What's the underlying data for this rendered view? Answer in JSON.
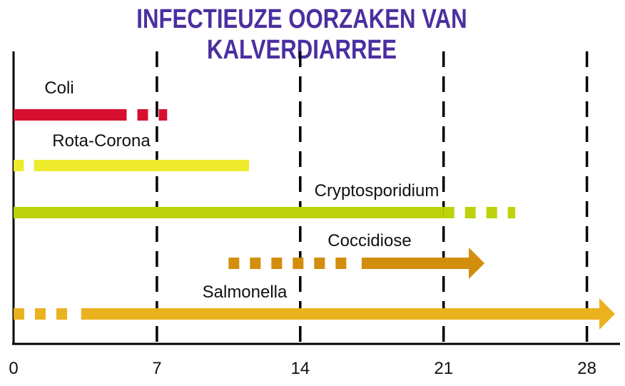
{
  "chart_data": {
    "type": "timeline",
    "title": "INFECTIEUZE OORZAKEN VAN KALVERDIARREE",
    "x_ticks": [
      0,
      7,
      14,
      21,
      28
    ],
    "xlim": [
      0,
      30
    ],
    "grid": "dashed vertical lines at 7, 14, 21, 28",
    "series": [
      {
        "name": "Coli",
        "color": "#d8102f",
        "solid": [
          [
            0,
            5
          ]
        ],
        "dashed": [
          [
            5,
            7.5
          ]
        ],
        "arrow": false
      },
      {
        "name": "Rota-Corona",
        "color": "#eeeb2c",
        "solid": [
          [
            1,
            11.5
          ]
        ],
        "dashed": [
          [
            0,
            0.5
          ]
        ],
        "arrow": false
      },
      {
        "name": "Cryptosporidium",
        "color": "#bcd30b",
        "solid": [
          [
            0,
            21
          ]
        ],
        "dashed": [
          [
            21,
            24.5
          ]
        ],
        "arrow": false
      },
      {
        "name": "Coccidiose",
        "color": "#d38e0d",
        "solid": [
          [
            17,
            23
          ]
        ],
        "dashed": [
          [
            10.5,
            16.5
          ]
        ],
        "arrow": true
      },
      {
        "name": "Salmonella",
        "color": "#ebb21f",
        "solid": [
          [
            3.3,
            30
          ]
        ],
        "dashed": [
          [
            0,
            2.8
          ]
        ],
        "arrow": true
      }
    ]
  }
}
